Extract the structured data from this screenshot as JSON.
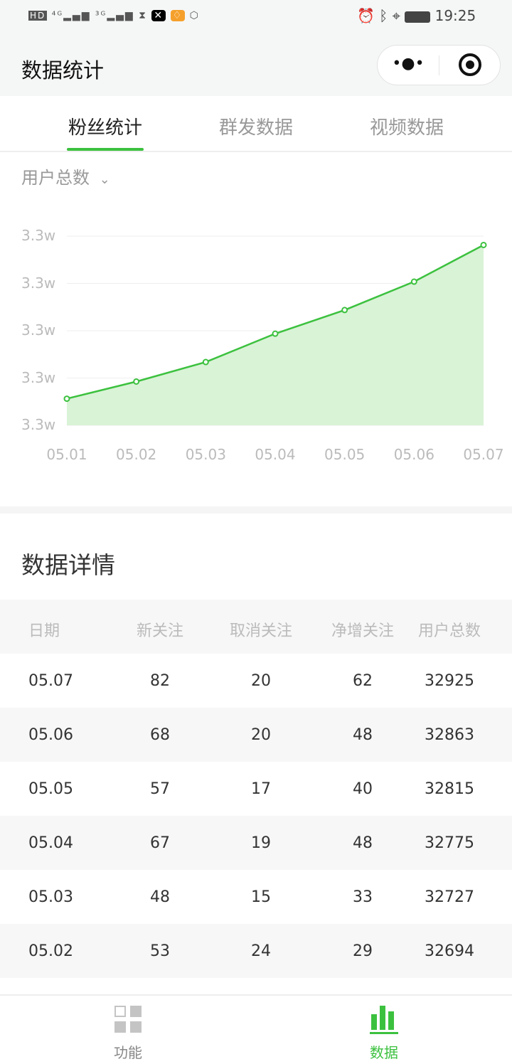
{
  "status_bar": {
    "time": "19:25",
    "left_icons": [
      "hd-icon",
      "signal-4g-icon",
      "signal-3g-icon",
      "hourglass-icon",
      "capcut-icon",
      "app-diamond-icon",
      "hand-icon"
    ],
    "right_icons": [
      "alarm-icon",
      "bluetooth-icon",
      "location-icon",
      "battery-icon"
    ]
  },
  "header": {
    "title": "数据统计"
  },
  "tabs": [
    {
      "label": "粉丝统计",
      "active": true
    },
    {
      "label": "群发数据"
    },
    {
      "label": "视频数据"
    }
  ],
  "metric_selector": {
    "label": "用户总数"
  },
  "colors": {
    "accent": "#3cc13f",
    "area": "#d9f3d6"
  },
  "chart_data": {
    "type": "area",
    "x": [
      "05.01",
      "05.02",
      "05.03",
      "05.04",
      "05.05",
      "05.06",
      "05.07"
    ],
    "values": [
      32665,
      32694,
      32727,
      32775,
      32815,
      32863,
      32925
    ],
    "ylim": [
      32620,
      32940
    ],
    "yticks": [
      32620,
      32700,
      32780,
      32860,
      32940
    ],
    "ytick_labels": [
      "3.3w",
      "3.3w",
      "3.3w",
      "3.3w",
      "3.3w"
    ],
    "grid": true
  },
  "details": {
    "title": "数据详情",
    "columns": [
      "日期",
      "新关注",
      "取消关注",
      "净增关注",
      "用户总数"
    ],
    "rows": [
      [
        "05.07",
        "82",
        "20",
        "62",
        "32925"
      ],
      [
        "05.06",
        "68",
        "20",
        "48",
        "32863"
      ],
      [
        "05.05",
        "57",
        "17",
        "40",
        "32815"
      ],
      [
        "05.04",
        "67",
        "19",
        "48",
        "32775"
      ],
      [
        "05.03",
        "48",
        "15",
        "33",
        "32727"
      ],
      [
        "05.02",
        "53",
        "24",
        "29",
        "32694"
      ]
    ]
  },
  "nav": [
    {
      "label": "功能"
    },
    {
      "label": "数据",
      "active": true
    }
  ]
}
